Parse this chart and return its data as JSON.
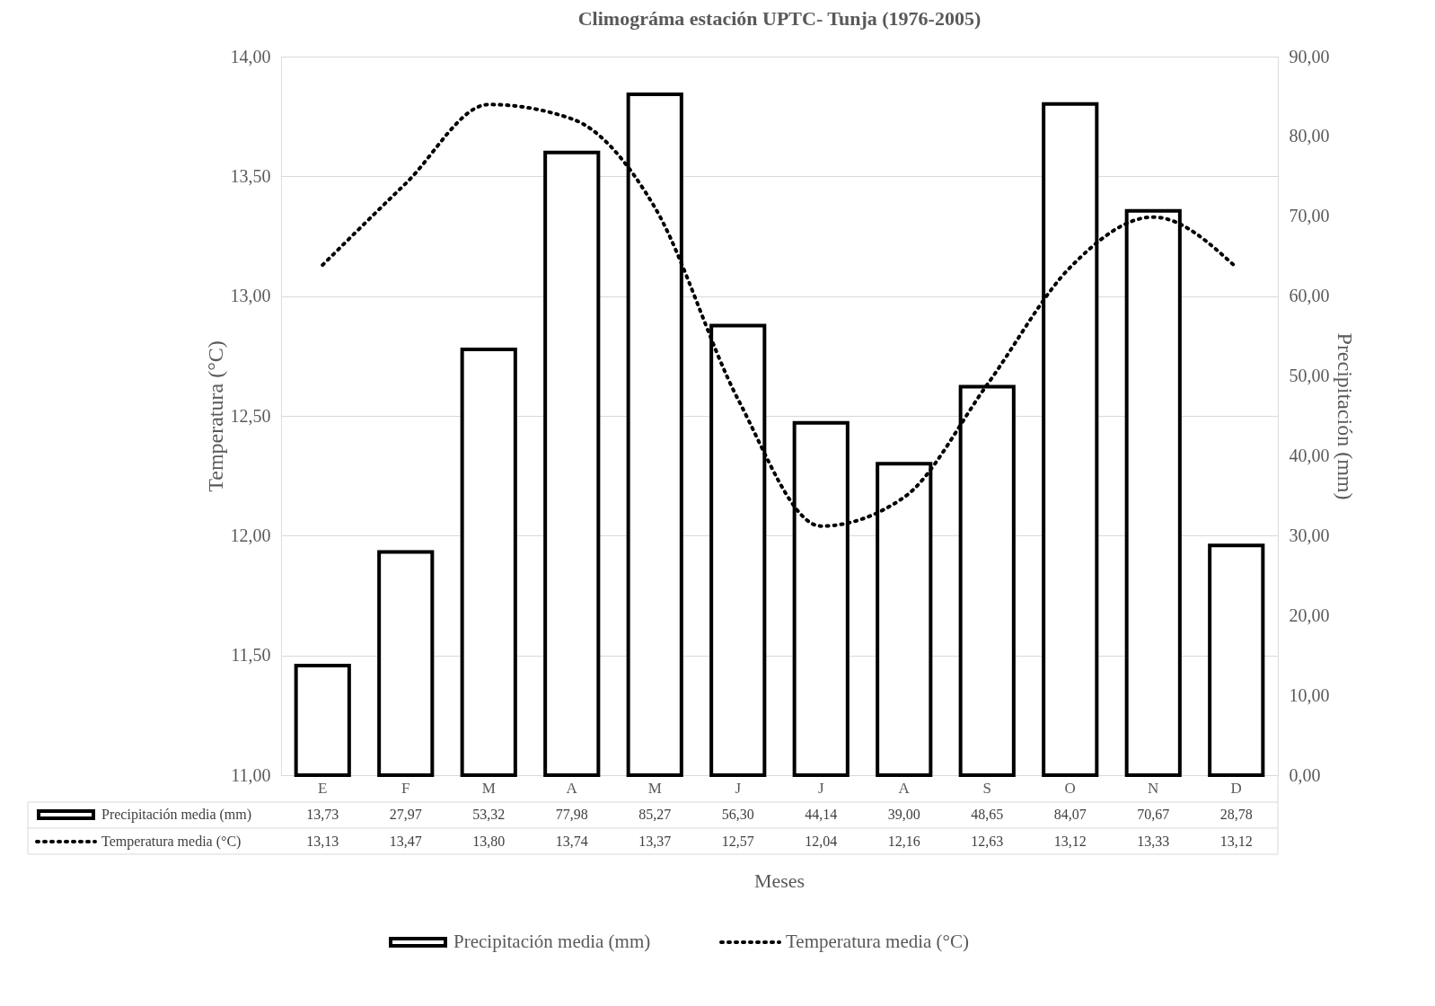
{
  "chart_data": {
    "type": "bar",
    "title": "Climográma estación UPTC- Tunja (1976-2005)",
    "categories": [
      "E",
      "F",
      "M",
      "A",
      "M",
      "J",
      "J",
      "A",
      "S",
      "O",
      "N",
      "D"
    ],
    "xlabel": "Meses",
    "ylabel": "Temperatura (°C)",
    "y2label": "Precipitación (mm)",
    "series": [
      {
        "name": "Precipitación media (mm)",
        "axis": "y2",
        "color": "#000000",
        "values": [
          13.73,
          27.97,
          53.32,
          77.98,
          85.27,
          56.3,
          44.14,
          39.0,
          48.65,
          84.07,
          70.67,
          28.78
        ],
        "value_labels": [
          "13,73",
          "27,97",
          "53,32",
          "77,98",
          "85,27",
          "56,30",
          "44,14",
          "39,00",
          "48,65",
          "84,07",
          "70,67",
          "28,78"
        ]
      },
      {
        "name": "Temperatura media (°C)",
        "type": "line",
        "color": "#000000",
        "line_style": "dotted",
        "values": [
          13.13,
          13.47,
          13.8,
          13.74,
          13.37,
          12.57,
          12.04,
          12.16,
          12.63,
          13.12,
          13.33,
          13.12
        ],
        "value_labels": [
          "13,13",
          "13,47",
          "13,80",
          "13,74",
          "13,37",
          "12,57",
          "12,04",
          "12,16",
          "12,63",
          "13,12",
          "13,33",
          "13,12"
        ]
      }
    ],
    "ylim": [
      11,
      14
    ],
    "yticks": [
      {
        "value": 11,
        "label": "11,00"
      },
      {
        "value": 11.5,
        "label": "11,50"
      },
      {
        "value": 12,
        "label": "12,00"
      },
      {
        "value": 12.5,
        "label": "12,50"
      },
      {
        "value": 13,
        "label": "13,00"
      },
      {
        "value": 13.5,
        "label": "13,50"
      },
      {
        "value": 14,
        "label": "14,00"
      }
    ],
    "y2lim": [
      0,
      90
    ],
    "y2ticks": [
      {
        "value": 0,
        "label": "0,00"
      },
      {
        "value": 10,
        "label": "10,00"
      },
      {
        "value": 20,
        "label": "20,00"
      },
      {
        "value": 30,
        "label": "30,00"
      },
      {
        "value": 40,
        "label": "40,00"
      },
      {
        "value": 50,
        "label": "50,00"
      },
      {
        "value": 60,
        "label": "60,00"
      },
      {
        "value": 70,
        "label": "70,00"
      },
      {
        "value": 80,
        "label": "80,00"
      },
      {
        "value": 90,
        "label": "90,00"
      }
    ],
    "grid": "y",
    "legend": "bottom"
  }
}
